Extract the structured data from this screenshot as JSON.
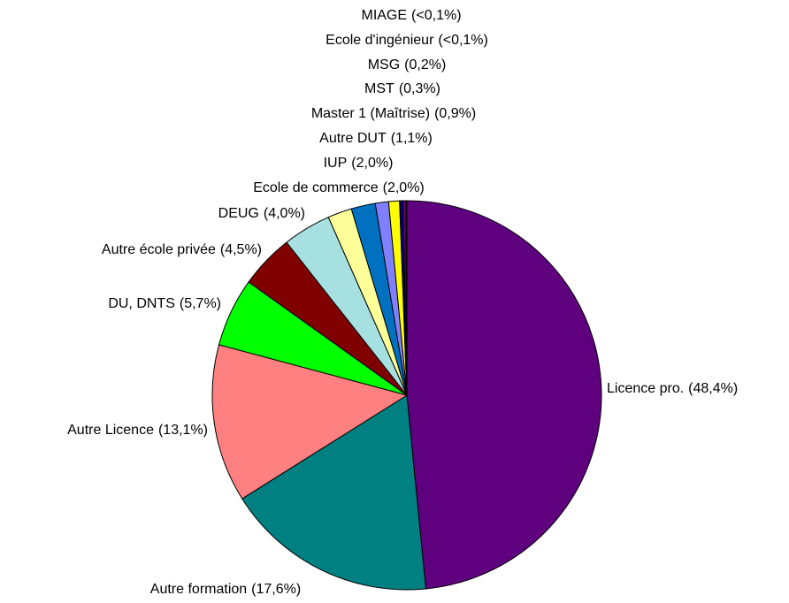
{
  "chart_data": {
    "type": "pie",
    "categories": [
      "Licence pro.",
      "Autre formation",
      "Autre Licence",
      "DU, DNTS",
      "Autre école privée",
      "DEUG",
      "Ecole de commerce",
      "IUP",
      "Autre DUT",
      "Master 1 (Maîtrise)",
      "MST",
      "MSG",
      "Ecole d'ingénieur",
      "MIAGE"
    ],
    "values": [
      48.4,
      17.6,
      13.1,
      5.7,
      4.5,
      4.0,
      2.0,
      2.0,
      1.1,
      0.9,
      0.3,
      0.2,
      0.05,
      0.05
    ],
    "value_labels": [
      "(48,4%)",
      "(17,6%)",
      "(13,1%)",
      "(5,7%)",
      "(4,5%)",
      "(4,0%)",
      "(2,0%)",
      "(2,0%)",
      "(1,1%)",
      "(0,9%)",
      "(0,3%)",
      "(0,2%)",
      "(<0,1%)",
      "(<0,1%)"
    ],
    "colors": [
      "#5f007f",
      "#008080",
      "#ff8080",
      "#00ff00",
      "#800000",
      "#a6e0e0",
      "#ffff99",
      "#0070c0",
      "#8080ff",
      "#ffff00",
      "#000080",
      "#800080",
      "#c0c0c0",
      "#00ffff"
    ]
  }
}
